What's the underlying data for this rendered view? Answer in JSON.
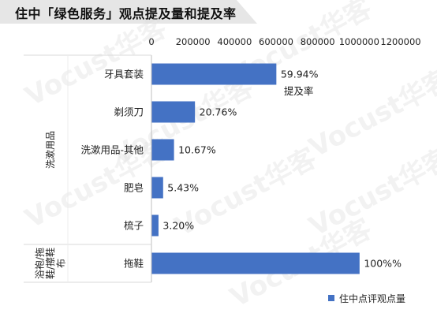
{
  "header": {
    "title": "住中「绿色服务」观点提及量和提及率"
  },
  "watermark": "Vocust华客",
  "chart_data": {
    "type": "bar",
    "orientation": "horizontal",
    "title": "住中「绿色服务」观点提及量和提及率",
    "x_ticks": [
      "0",
      "200000",
      "400000",
      "600000",
      "800000",
      "1000000",
      "1200000"
    ],
    "xlim": [
      0,
      1200000
    ],
    "groups": [
      {
        "label": "洗漱用品",
        "categories": [
          "牙具套装",
          "剃须刀",
          "洗漱用品-其他",
          "肥皂",
          "梳子"
        ]
      },
      {
        "label": "浴袍/拖鞋/擦鞋布",
        "label_lines": [
          "浴袍/拖",
          "鞋/擦鞋",
          "布"
        ],
        "categories": [
          "拖鞋"
        ]
      }
    ],
    "categories": [
      "牙具套装",
      "剃须刀",
      "洗漱用品-其他",
      "肥皂",
      "梳子",
      "拖鞋"
    ],
    "series": [
      {
        "name": "住中点评观点量",
        "values": [
          599400,
          207600,
          106700,
          54300,
          32000,
          1000000
        ],
        "color": "#4472c4"
      }
    ],
    "data_labels": [
      "59.94%",
      "20.76%",
      "10.67%",
      "5.43%",
      "3.20%",
      "100%%"
    ],
    "annotation": "提及率",
    "legend": {
      "position": "bottom-right",
      "entries": [
        "住中点评观点量"
      ]
    },
    "grid": false
  }
}
